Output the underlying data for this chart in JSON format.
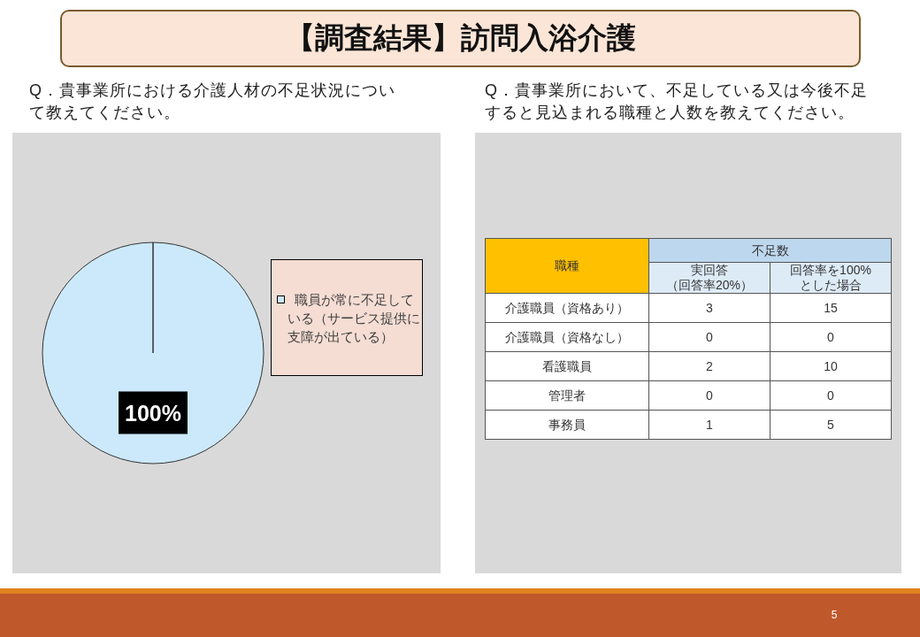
{
  "chart_data": [
    {
      "type": "pie",
      "title": "【調査結果】訪問入浴介護",
      "subtitle": "Q．貴事業所における介護人材の不足状況について教えてください。",
      "categories": [
        "職員が常に不足している（サービス提供に支障が出ている）"
      ],
      "values": [
        100
      ],
      "colors": [
        "#cce9fb"
      ],
      "value_labels": [
        "100%"
      ],
      "legend": "right",
      "annotations": [
        "5"
      ]
    },
    {
      "type": "other",
      "title": "Q．貴事業所において、不足している又は今後不足すると見込まれる職種と人数を教えてください。",
      "annotations": [
        "職種",
        "不足数",
        "実回答（回答率20%）",
        "回答率を100%とした場合",
        "介護職員（資格あり）",
        "3",
        "15",
        "介護職員（資格なし）",
        "0",
        "0",
        "看護職員",
        "2",
        "10",
        "管理者",
        "0",
        "0",
        "事務員",
        "1",
        "5"
      ]
    }
  ]
}
